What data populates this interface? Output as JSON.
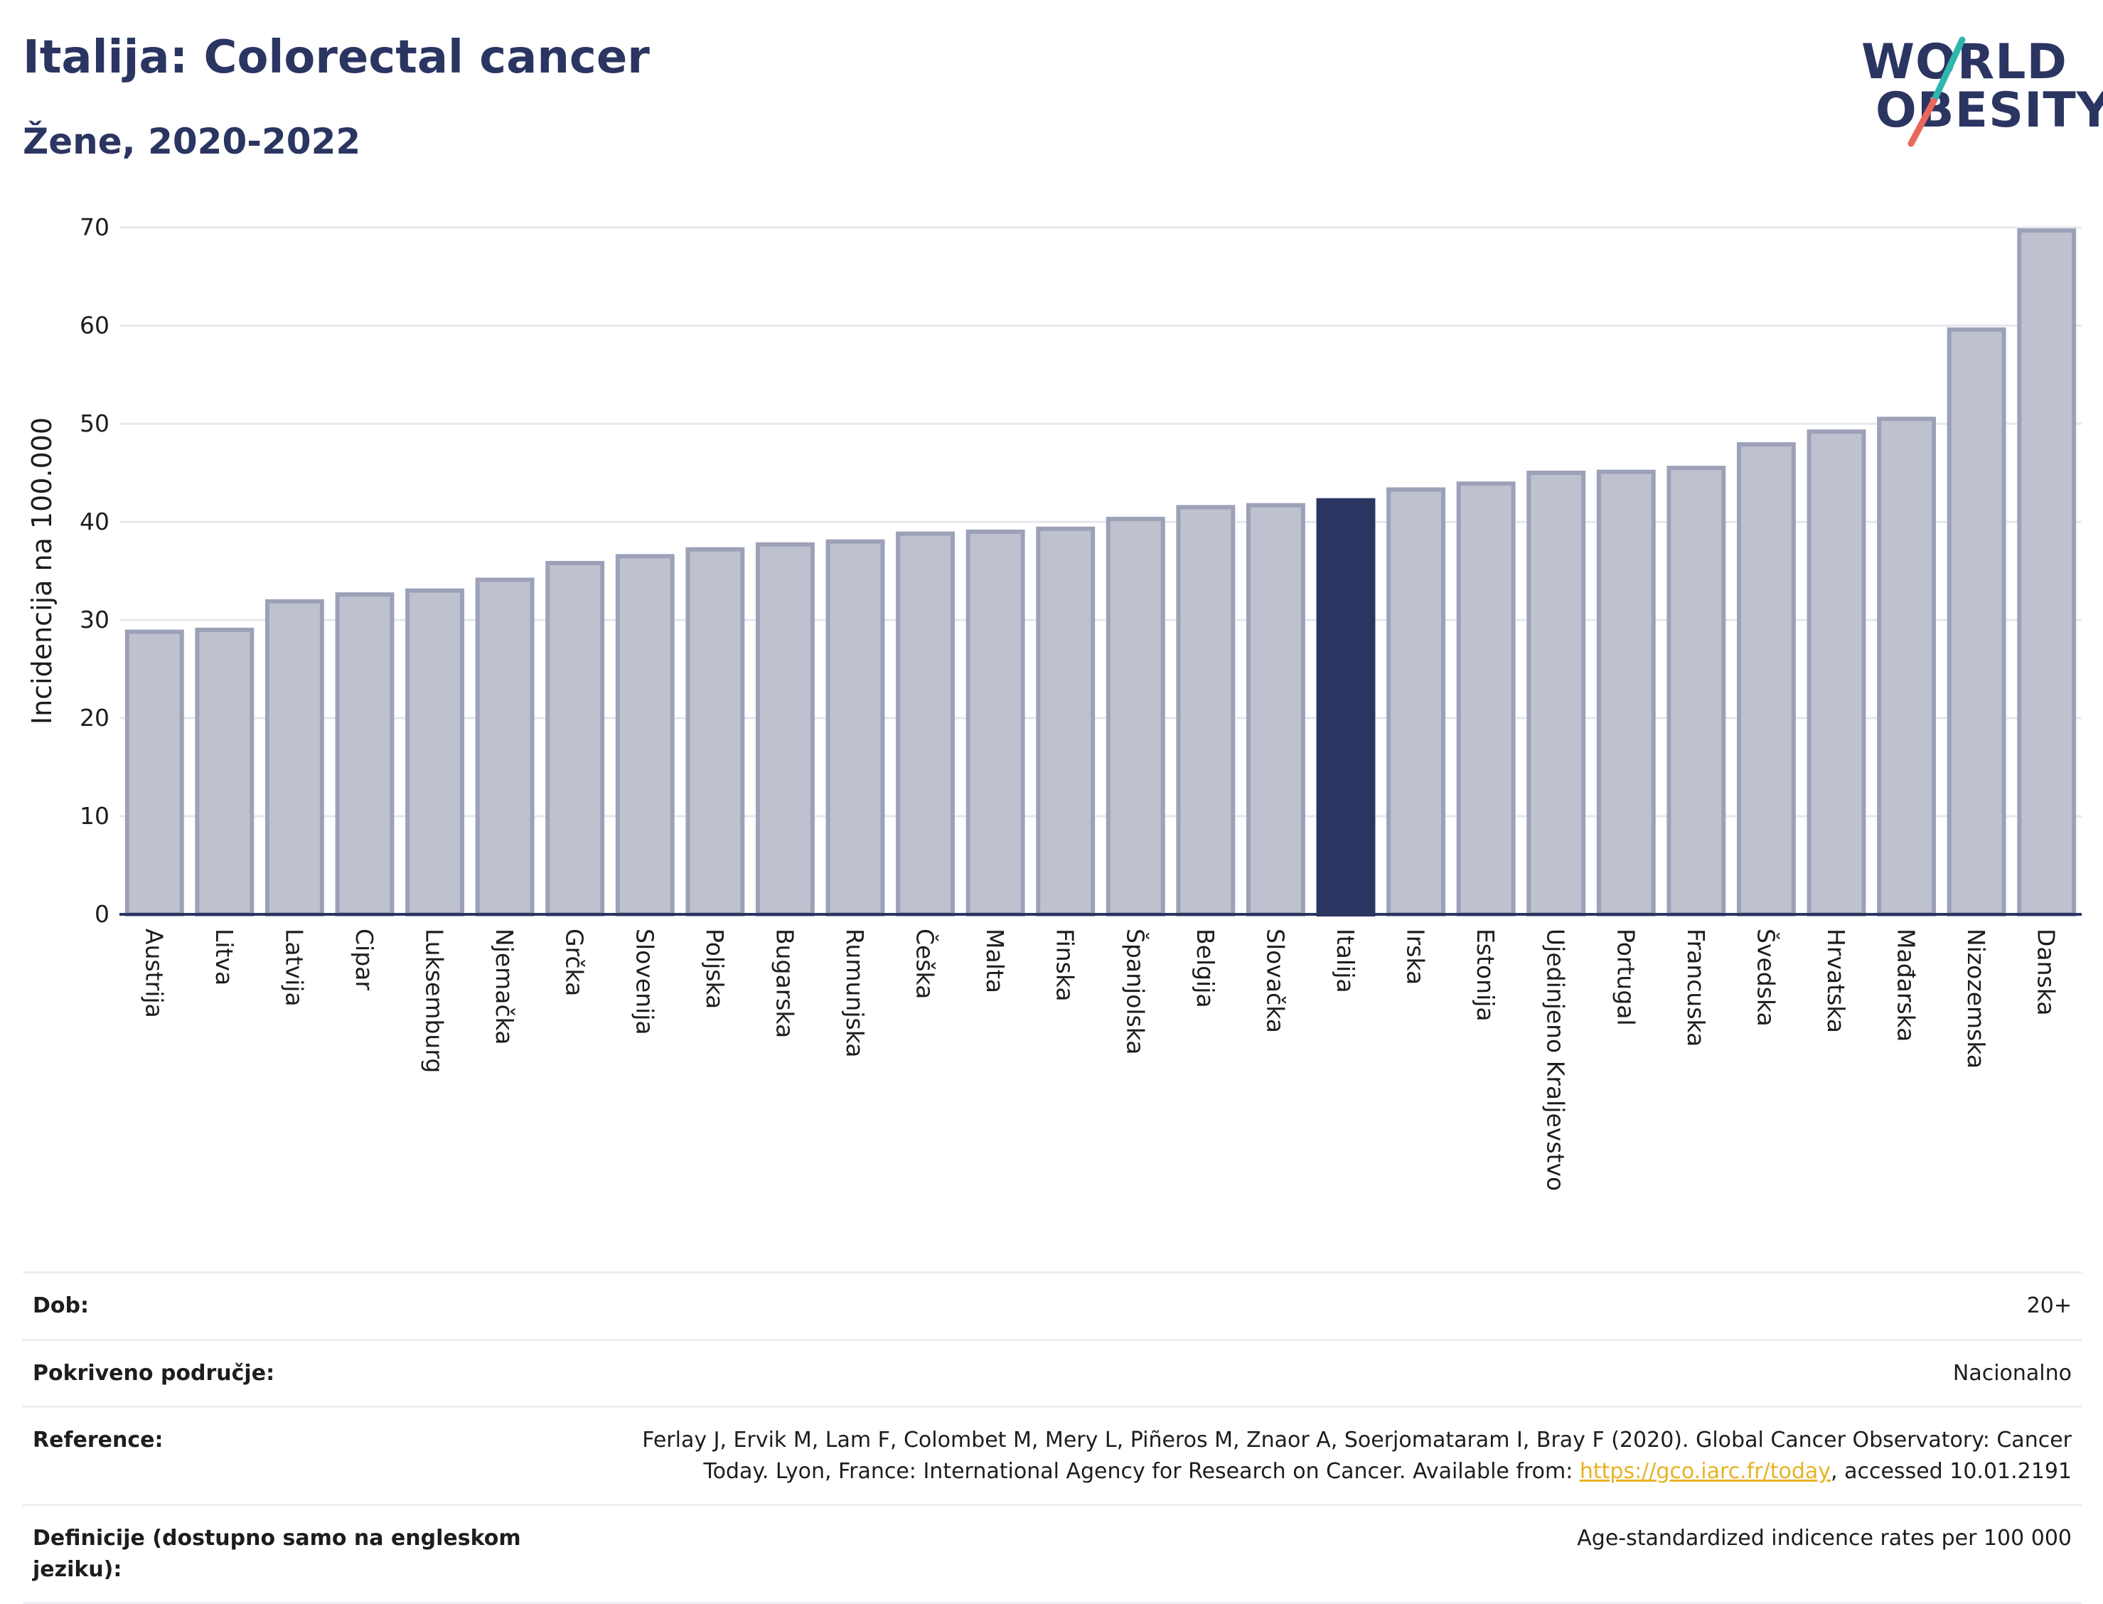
{
  "header": {
    "title": "Italija: Colorectal cancer",
    "subtitle": "Žene, 2020-2022",
    "logo_line1": "WORLD",
    "logo_line2": "OBESITY"
  },
  "chart_data": {
    "type": "bar",
    "ylabel": "Incidencija na 100.000",
    "ylim": [
      0,
      70
    ],
    "yticks": [
      0,
      10,
      20,
      30,
      40,
      50,
      60,
      70
    ],
    "grid": true,
    "highlight": "Italija",
    "colors": {
      "bar": "#bec1ce",
      "bar_border": "#9ca1b8",
      "highlight": "#2b3561",
      "grid": "#e5e7ee",
      "axis": "#2b3561"
    },
    "categories": [
      "Austrija",
      "Litva",
      "Latvija",
      "Cipar",
      "Luksemburg",
      "Njemačka",
      "Grčka",
      "Slovenija",
      "Poljska",
      "Bugarska",
      "Rumunjska",
      "Češka",
      "Malta",
      "Finska",
      "Španjolska",
      "Belgija",
      "Slovačka",
      "Italija",
      "Irska",
      "Estonija",
      "Ujedinjeno Kraljevstvo",
      "Portugal",
      "Francuska",
      "Švedska",
      "Hrvatska",
      "Mađarska",
      "Nizozemska",
      "Danska"
    ],
    "values": [
      28.8,
      29.0,
      31.9,
      32.6,
      33.0,
      34.1,
      35.8,
      36.5,
      37.2,
      37.7,
      38.0,
      38.8,
      39.0,
      39.3,
      40.3,
      41.5,
      41.7,
      42.2,
      43.3,
      43.9,
      45.0,
      45.1,
      45.5,
      47.9,
      49.2,
      50.5,
      59.6,
      69.7
    ]
  },
  "info": {
    "rows": [
      {
        "label": "Dob:",
        "value": "20+"
      },
      {
        "label": "Pokriveno područje:",
        "value": "Nacionalno"
      },
      {
        "label": "Reference:",
        "value_pre": "Ferlay J, Ervik M, Lam F, Colombet M, Mery L, Piñeros M, Znaor A, Soerjomataram I, Bray F (2020). Global Cancer Observatory: Cancer Today. Lyon, France: International Agency for Research on Cancer. Available from: ",
        "link": "https://gco.iarc.fr/today",
        "value_post": ", accessed 10.01.2191"
      },
      {
        "label": "Definicije (dostupno samo na engleskom jeziku):",
        "value": "Age-standardized indicence rates per 100 000"
      }
    ]
  }
}
